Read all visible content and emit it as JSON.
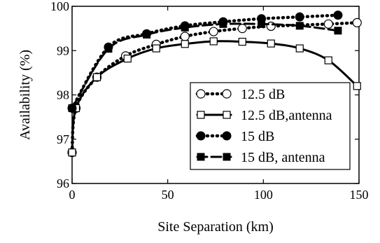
{
  "chart_data": {
    "type": "line",
    "title": "",
    "xlabel": "Site Separation (km)",
    "ylabel": "Availability (%)",
    "xlim": [
      0,
      150
    ],
    "ylim": [
      96,
      100
    ],
    "xticks": [
      0,
      50,
      100,
      150
    ],
    "yticks": [
      96,
      97,
      98,
      99,
      100
    ],
    "xtick_labels": [
      "0",
      "50",
      "100",
      "150"
    ],
    "ytick_labels": [
      "96",
      "97",
      "98",
      "99",
      "100"
    ],
    "grid": false,
    "legend_position": "lower-right",
    "series": [
      {
        "name": "12.5 dB",
        "marker": "circle-open",
        "line": "dotted",
        "color": "#000000",
        "x": [
          0,
          2,
          13,
          28,
          44,
          59,
          74,
          89,
          104,
          134,
          149
        ],
        "y": [
          96.7,
          97.7,
          98.4,
          98.88,
          99.14,
          99.32,
          99.43,
          99.5,
          99.55,
          99.6,
          99.63
        ]
      },
      {
        "name": "12.5 dB,antenna",
        "marker": "square-open",
        "line": "solid",
        "color": "#000000",
        "x": [
          0,
          2,
          13,
          29,
          44,
          59,
          74,
          89,
          104,
          119,
          134,
          149
        ],
        "y": [
          96.7,
          97.7,
          98.4,
          98.82,
          99.05,
          99.15,
          99.21,
          99.2,
          99.16,
          99.05,
          98.78,
          98.2
        ]
      },
      {
        "name": "15 dB",
        "marker": "circle-filled",
        "line": "dotted",
        "color": "#000000",
        "x": [
          0,
          19,
          39,
          59,
          79,
          99,
          119,
          139
        ],
        "y": [
          97.7,
          99.08,
          99.38,
          99.56,
          99.65,
          99.72,
          99.76,
          99.8
        ]
      },
      {
        "name": "15 dB, antenna",
        "marker": "square-filled",
        "line": "dashed",
        "color": "#000000",
        "x": [
          0,
          19,
          39,
          59,
          79,
          99,
          119,
          139
        ],
        "y": [
          97.7,
          99.04,
          99.36,
          99.52,
          99.6,
          99.6,
          99.56,
          99.45
        ]
      }
    ]
  }
}
